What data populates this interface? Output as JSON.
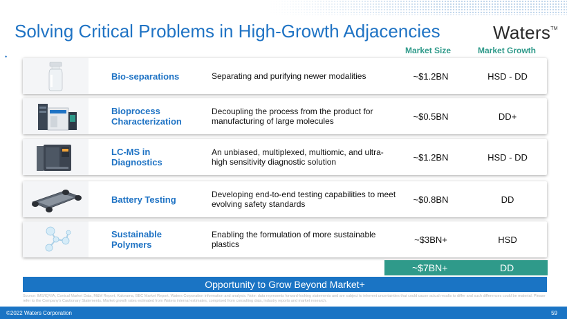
{
  "slide": {
    "title": "Solving Critical Problems in High-Growth Adjacencies",
    "logo": "Waters",
    "logo_tm": "TM",
    "headers": {
      "market_size": "Market Size",
      "market_growth": "Market Growth"
    },
    "bullet": "•",
    "rows": [
      {
        "name": "Bio-separations",
        "description": "Separating and purifying newer modalities",
        "market_size": "~$1.2BN",
        "market_growth": "HSD - DD",
        "icon": "vial-icon"
      },
      {
        "name": "Bioprocess Characterization",
        "description": "Decoupling the process from the product for manufacturing of large molecules",
        "market_size": "~$0.5BN",
        "market_growth": "DD+",
        "icon": "bioaccord-system-icon"
      },
      {
        "name": "LC-MS in Diagnostics",
        "description": "An unbiased, multiplexed, multiomic, and ultra-high sensitivity diagnostic solution",
        "market_size": "~$1.2BN",
        "market_growth": "HSD - DD",
        "icon": "mass-spectrometer-icon"
      },
      {
        "name": "Battery Testing",
        "description": "Developing end-to-end testing capabilities to meet evolving safety standards",
        "market_size": "~$0.8BN",
        "market_growth": "DD",
        "icon": "ev-battery-chassis-icon"
      },
      {
        "name": "Sustainable Polymers",
        "description": "Enabling the formulation of more sustainable plastics",
        "market_size": "~$3BN+",
        "market_growth": "HSD",
        "icon": "molecule-icon"
      }
    ],
    "total": {
      "market_size": "~$7BN+",
      "market_growth": "DD"
    },
    "banner": "Opportunity to Grow Beyond Market+",
    "source": "Source: IMS/IQVIA, Conical Market Data, M&M Report, Kalorama, BBC Market Report, Waters Corporation information and analysis. Note: data represents forward-looking statements and are subject to inherent uncertainties that could cause actual results to differ and such differences could be material. Please refer to the Company's Cautionary Statements. Market growth rates estimated from Waters internal estimates, comprised from consulting data, industry reports and market research.",
    "footer": {
      "copyright": "©2022 Waters Corporation",
      "page": "59"
    },
    "colors": {
      "title_blue": "#1f73c4",
      "teal": "#2f9a8a",
      "banner_blue": "#1a74c4"
    }
  }
}
